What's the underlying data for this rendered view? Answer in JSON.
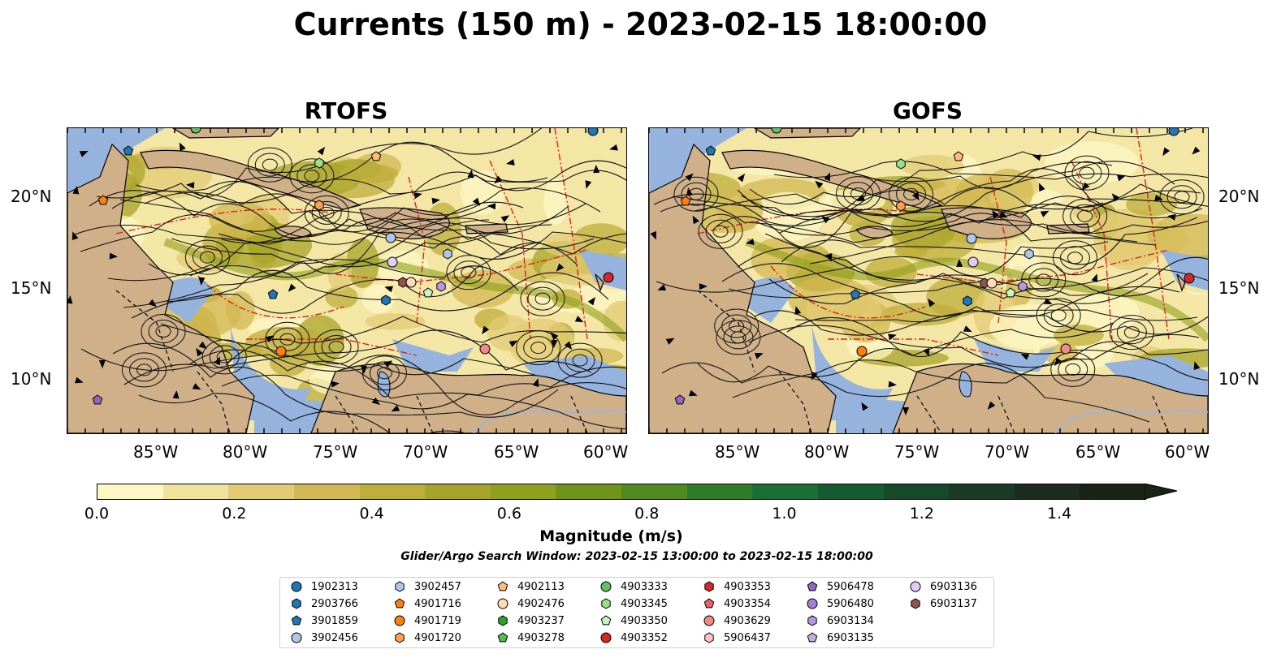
{
  "title": "Currents (150 m) - 2023-02-15 18:00:00",
  "panels": [
    {
      "title": "RTOFS"
    },
    {
      "title": "GOFS"
    }
  ],
  "lon_labels": [
    "85°W",
    "80°W",
    "75°W",
    "70°W",
    "65°W",
    "60°W"
  ],
  "lat_labels": [
    "20°N",
    "15°N",
    "10°N"
  ],
  "colorbar": {
    "ticks": [
      "0.0",
      "0.2",
      "0.4",
      "0.6",
      "0.8",
      "1.0",
      "1.2",
      "1.4"
    ],
    "label": "Magnitude (m/s)",
    "colors": [
      "#fdf7c4",
      "#f1e29c",
      "#e2cb73",
      "#d2b852",
      "#bfae3b",
      "#a8a42a",
      "#8fa01c",
      "#6f9418",
      "#4f8a21",
      "#2e7d2b",
      "#1b6e34",
      "#135c31",
      "#17492b",
      "#1a3a26",
      "#1c2c1e",
      "#1a2316"
    ]
  },
  "subtitle": "Glider/Argo Search Window: 2023-02-15 13:00:00 to 2023-02-15 18:00:00",
  "legend": [
    {
      "label": "1902313",
      "marker": "circle",
      "color": "#1f77b4"
    },
    {
      "label": "2903766",
      "marker": "hexagon",
      "color": "#1f77b4"
    },
    {
      "label": "3901859",
      "marker": "pentagon",
      "color": "#1f77b4"
    },
    {
      "label": "3902456",
      "marker": "circle",
      "color": "#aec7e8"
    },
    {
      "label": "3902457",
      "marker": "hexagon",
      "color": "#aec7e8"
    },
    {
      "label": "4901716",
      "marker": "pentagon",
      "color": "#ff7f0e"
    },
    {
      "label": "4901719",
      "marker": "circle",
      "color": "#ff7f0e"
    },
    {
      "label": "4901720",
      "marker": "hexagon",
      "color": "#ff9f4a"
    },
    {
      "label": "4902113",
      "marker": "pentagon",
      "color": "#ffbb78"
    },
    {
      "label": "4902476",
      "marker": "circle",
      "color": "#ffdcb5"
    },
    {
      "label": "4903237",
      "marker": "hexagon",
      "color": "#2ca02c"
    },
    {
      "label": "4903278",
      "marker": "pentagon",
      "color": "#4cbf4c"
    },
    {
      "label": "4903333",
      "marker": "circle",
      "color": "#63c063"
    },
    {
      "label": "4903345",
      "marker": "hexagon",
      "color": "#98df8a"
    },
    {
      "label": "4903350",
      "marker": "pentagon",
      "color": "#c9f5c0"
    },
    {
      "label": "4903352",
      "marker": "circle",
      "color": "#d62728"
    },
    {
      "label": "4903353",
      "marker": "hexagon",
      "color": "#d62728"
    },
    {
      "label": "4903354",
      "marker": "pentagon",
      "color": "#e9636a"
    },
    {
      "label": "4903629",
      "marker": "circle",
      "color": "#f08a8a"
    },
    {
      "label": "5906437",
      "marker": "hexagon",
      "color": "#ffc0c0"
    },
    {
      "label": "5906478",
      "marker": "pentagon",
      "color": "#9467bd"
    },
    {
      "label": "5906480",
      "marker": "circle",
      "color": "#a57fd0"
    },
    {
      "label": "6903134",
      "marker": "hexagon",
      "color": "#b497dc"
    },
    {
      "label": "6903135",
      "marker": "pentagon",
      "color": "#c5b0d5"
    },
    {
      "label": "6903136",
      "marker": "circle",
      "color": "#e3cdf5"
    },
    {
      "label": "6903137",
      "marker": "hexagon",
      "color": "#8c564b"
    }
  ]
}
